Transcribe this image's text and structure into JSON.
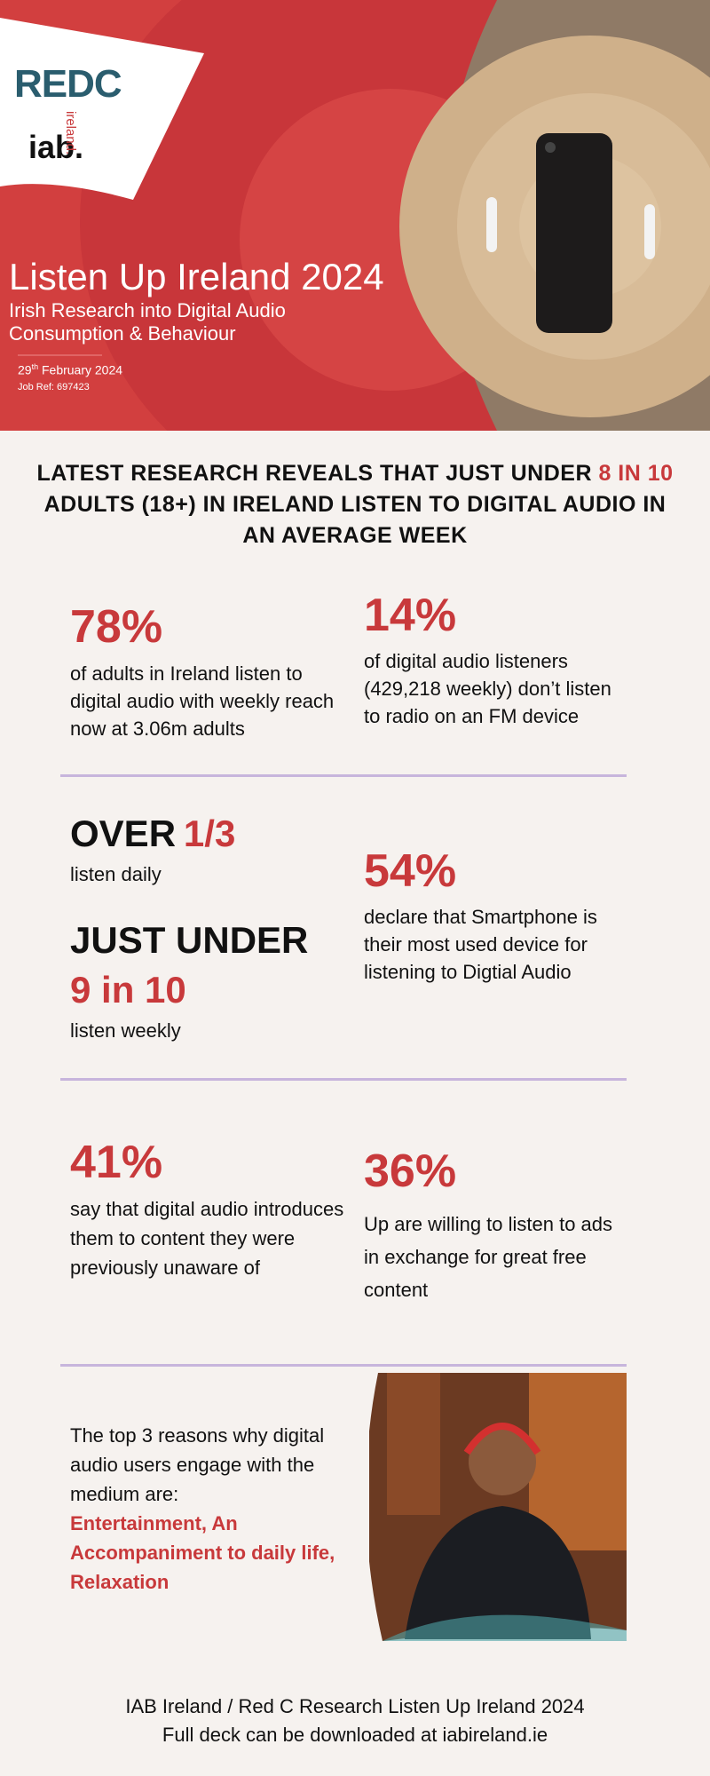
{
  "header": {
    "logos": {
      "redc": "REDC",
      "iab": "iab.",
      "iab_sub": "ireland."
    },
    "title": "Listen Up Ireland 2024",
    "subtitle": [
      "Irish Research into Digital Audio",
      "Consumption & Behaviour"
    ],
    "date": {
      "day": "29",
      "suffix": "th",
      "rest": "February 2024"
    },
    "job_ref": "Job Ref: 697423"
  },
  "headline": {
    "before": "LATEST RESEARCH REVEALS THAT JUST UNDER",
    "highlight": "8 IN 10",
    "after": "ADULTS (18+) IN IRELAND LISTEN TO DIGITAL AUDIO IN AN AVERAGE WEEK"
  },
  "stats": [
    {
      "value": "78%",
      "text": "of adults in Ireland listen to digital audio with weekly reach now at 3.06m adults"
    },
    {
      "value": "14%",
      "text": "of digital audio listeners (429,218 weekly) don’t listen to radio on an FM device"
    },
    {
      "label": "OVER",
      "value": "1/3",
      "text": "listen daily"
    },
    {
      "label": "JUST UNDER",
      "value": "9 in 10",
      "text": "listen weekly"
    },
    {
      "value": "54%",
      "text": "declare that Smartphone is their most used device for listening to Digtial Audio"
    },
    {
      "value": "41%",
      "text": "say that digital audio introduces them to content they were previously unaware of"
    },
    {
      "value": "36%",
      "text": "Up are willing to listen to ads in exchange for great free content"
    }
  ],
  "reasons": {
    "intro": "The top 3 reasons why digital audio users engage with the medium are:",
    "highlight": "Entertainment, An Accompaniment to daily life, Relaxation"
  },
  "footer": [
    "IAB Ireland / Red C Research Listen Up Ireland 2024",
    "Full deck can be downloaded at iabireland.ie"
  ]
}
